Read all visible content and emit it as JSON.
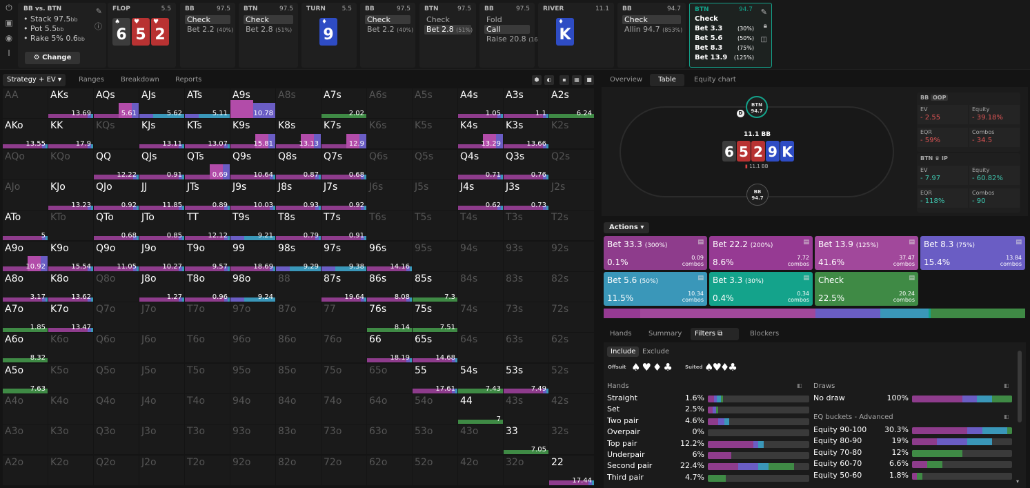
{
  "colors": {
    "purple": "#8e3c8c",
    "purple2": "#b24ca9",
    "violet": "#6a5dc4",
    "teal": "#3a97b9",
    "teal2": "#14a38b",
    "green": "#3f8a45",
    "red": "#b83232",
    "blue": "#2e4cc4",
    "gray": "#4a4a4a"
  },
  "sidebar": {
    "icons": [
      "power-icon",
      "save-icon",
      "gamepad-icon",
      "text-cursor-icon"
    ]
  },
  "spot": {
    "title": "BB vs. BTN",
    "stack": "Stack 97.5",
    "pot": "Pot 5.5",
    "rake": "Rake 5% 0.6",
    "unit": "bb",
    "change_label": "Change"
  },
  "streets": [
    {
      "key": "flop",
      "title": "FLOP",
      "value": "5.5",
      "cards": [
        {
          "rank": "6",
          "suit": "♠",
          "color": "gray"
        },
        {
          "rank": "5",
          "suit": "♥",
          "color": "red"
        },
        {
          "rank": "2",
          "suit": "♥",
          "color": "red"
        }
      ]
    },
    {
      "key": "bb1",
      "title": "BB",
      "value": "97.5",
      "actions": [
        {
          "label": "Check",
          "pct": "",
          "sel": true
        },
        {
          "label": "Bet 2.2",
          "pct": "(40%)",
          "sel": false
        }
      ]
    },
    {
      "key": "btn1",
      "title": "BTN",
      "value": "97.5",
      "actions": [
        {
          "label": "Check",
          "pct": "",
          "sel": true
        },
        {
          "label": "Bet 2.8",
          "pct": "(51%)",
          "sel": false
        }
      ]
    },
    {
      "key": "turn",
      "title": "TURN",
      "value": "5.5",
      "cards": [
        {
          "rank": "9",
          "suit": "♦",
          "color": "blue"
        }
      ]
    },
    {
      "key": "bb2",
      "title": "BB",
      "value": "97.5",
      "actions": [
        {
          "label": "Check",
          "pct": "",
          "sel": true
        },
        {
          "label": "Bet 2.2",
          "pct": "(40%)",
          "sel": false
        }
      ]
    },
    {
      "key": "btn2",
      "title": "BTN",
      "value": "97.5",
      "actions": [
        {
          "label": "Check",
          "pct": "",
          "sel": false
        },
        {
          "label": "Bet 2.8",
          "pct": "(51%)",
          "sel": true
        }
      ]
    },
    {
      "key": "bb3",
      "title": "BB",
      "value": "97.5",
      "actions": [
        {
          "label": "Fold",
          "pct": "",
          "sel": false
        },
        {
          "label": "Call",
          "pct": "",
          "sel": true
        },
        {
          "label": "Raise 20.8",
          "pct": "(162%)",
          "sel": false
        }
      ]
    },
    {
      "key": "river",
      "title": "RIVER",
      "value": "11.1",
      "cards": [
        {
          "rank": "K",
          "suit": "♦",
          "color": "blue"
        }
      ]
    },
    {
      "key": "bb4",
      "title": "BB",
      "value": "94.7",
      "actions": [
        {
          "label": "Check",
          "pct": "",
          "sel": true
        },
        {
          "label": "Allin 94.7",
          "pct": "(853%)",
          "sel": false
        }
      ]
    }
  ],
  "btn_node": {
    "title": "BTN",
    "value": "94.7",
    "rows": [
      {
        "label": "Check",
        "pct": ""
      },
      {
        "label": "Bet 3.3",
        "pct": "(30%)"
      },
      {
        "label": "Bet 5.6",
        "pct": "(50%)"
      },
      {
        "label": "Bet 8.3",
        "pct": "(75%)"
      },
      {
        "label": "Bet 13.9",
        "pct": "(125%)"
      }
    ]
  },
  "left_tabs": {
    "strategy": "Strategy + EV",
    "ranges": "Ranges",
    "breakdown": "Breakdown",
    "reports": "Reports"
  },
  "grid": [
    [
      "AA|0|",
      "AKs|1|13.69",
      "AQs|2|5.61",
      "AJs|3|5.62",
      "ATs|3|5.11",
      "A9s|4|10.78",
      "A8s|0|",
      "A7s|5|2.02",
      "A6s|0|",
      "A5s|0|",
      "A4s|1|1.05",
      "A3s|1|1.1",
      "A2s|5|6.24"
    ],
    [
      "AKo|1|13.55",
      "KK|1|17.9",
      "KQs|0|",
      "KJs|1|13.11",
      "KTs|1|13.07",
      "K9s|2|15.81",
      "K8s|2|13.13",
      "K7s|2|12.9",
      "K6s|0|",
      "K5s|0|",
      "K4s|2|13.29",
      "K3s|1|13.66",
      "K2s|0|"
    ],
    [
      "AQo|0|",
      "KQo|0|",
      "QQ|1|12.22",
      "QJs|1|0.91",
      "QTs|2|0.69",
      "Q9s|1|10.64",
      "Q8s|1|0.87",
      "Q7s|1|0.68",
      "Q6s|0|",
      "Q5s|0|",
      "Q4s|1|0.71",
      "Q3s|1|0.76",
      "Q2s|0|"
    ],
    [
      "AJo|0|",
      "KJo|1|13.23",
      "QJo|1|0.92",
      "JJ|1|11.85",
      "JTs|1|0.89",
      "J9s|1|10.03",
      "J8s|1|0.93",
      "J7s|1|0.92",
      "J6s|0|",
      "J5s|0|",
      "J4s|1|0.62",
      "J3s|1|0.73",
      "J2s|0|"
    ],
    [
      "ATo|1|5",
      "KTo|0|",
      "QTo|1|0.68",
      "JTo|1|0.85",
      "TT|1|12.12",
      "T9s|3|9.21",
      "T8s|1|0.79",
      "T7s|1|0.91",
      "T6s|0|",
      "T5s|0|",
      "T4s|0|",
      "T3s|0|",
      "T2s|0|"
    ],
    [
      "A9o|2|10.92",
      "K9o|1|15.54",
      "Q9o|1|11.05",
      "J9o|1|10.27",
      "T9o|1|9.57",
      "99|1|18.69",
      "98s|3|9.29",
      "97s|3|9.38",
      "96s|1|14.16",
      "95s|0|",
      "94s|0|",
      "93s|0|",
      "92s|0|"
    ],
    [
      "A8o|1|3.17",
      "K8o|1|13.62",
      "Q8o|0|",
      "J8o|1|1.27",
      "T8o|1|0.96",
      "98o|3|9.24",
      "88|0|",
      "87s|1|19.64",
      "86s|1|8.08",
      "85s|5|7.3",
      "84s|0|",
      "83s|0|",
      "82s|0|"
    ],
    [
      "A7o|5|1.85",
      "K7o|1|13.47",
      "Q7o|0|",
      "J7o|0|",
      "T7o|0|",
      "97o|0|",
      "87o|0|",
      "77|0|",
      "76s|5|8.14",
      "75s|5|7.51",
      "74s|0|",
      "73s|0|",
      "72s|0|"
    ],
    [
      "A6o|5|8.32",
      "K6o|0|",
      "Q6o|0|",
      "J6o|0|",
      "T6o|0|",
      "96o|0|",
      "86o|0|",
      "76o|0|",
      "66|1|18.19",
      "65s|1|14.68",
      "64s|0|",
      "63s|0|",
      "62s|0|"
    ],
    [
      "A5o|5|7.63",
      "K5o|0|",
      "Q5o|0|",
      "J5o|0|",
      "T5o|0|",
      "95o|0|",
      "85o|0|",
      "75o|0|",
      "65o|0|",
      "55|1|17.61",
      "54s|5|7.43",
      "53s|1|7.49",
      "52s|0|"
    ],
    [
      "A4o|0|",
      "K4o|0|",
      "Q4o|0|",
      "J4o|0|",
      "T4o|0|",
      "94o|0|",
      "84o|0|",
      "74o|0|",
      "64o|0|",
      "54o|0|",
      "44|5|7",
      "43s|0|",
      "42s|0|"
    ],
    [
      "A3o|0|",
      "K3o|0|",
      "Q3o|0|",
      "J3o|0|",
      "T3o|0|",
      "93o|0|",
      "83o|0|",
      "73o|0|",
      "63o|0|",
      "53o|0|",
      "43o|0|",
      "33|5|7.05",
      "32s|0|"
    ],
    [
      "A2o|0|",
      "K2o|0|",
      "Q2o|0|",
      "J2o|0|",
      "T2o|0|",
      "92o|0|",
      "82o|0|",
      "72o|0|",
      "62o|0|",
      "52o|0|",
      "42o|0|",
      "32o|0|",
      "22|1|17.44"
    ]
  ],
  "right_tabs": {
    "overview": "Overview",
    "table": "Table",
    "equity": "Equity chart"
  },
  "table": {
    "pot": "11.1 BB",
    "pot_small": "11.1 BB",
    "dealer": "D",
    "btn_seat": {
      "name": "BTN",
      "stack": "94.7"
    },
    "bb_seat": {
      "name": "BB",
      "stack": "94.7"
    },
    "board": [
      {
        "rank": "6",
        "color": "gray"
      },
      {
        "rank": "5",
        "color": "red"
      },
      {
        "rank": "2",
        "color": "red"
      },
      {
        "rank": "9",
        "color": "blue"
      },
      {
        "rank": "K",
        "color": "blue"
      }
    ]
  },
  "stats": {
    "bb": {
      "title": "BB",
      "pos": "OOP",
      "ev": "- 2.55",
      "equity": "- 39.18%",
      "eqr": "- 59%",
      "combos": "- 34.5"
    },
    "btn": {
      "title": "BTN",
      "pos": "IP",
      "ev": "- 7.97",
      "equity": "- 60.82%",
      "eqr": "- 118%",
      "combos": "- 90"
    },
    "labels": {
      "ev": "EV",
      "equity": "Equity",
      "eqr": "EQR",
      "combos": "Combos"
    }
  },
  "actions": {
    "header": "Actions",
    "items": [
      {
        "label": "Bet 33.3",
        "size": "(300%)",
        "pct": "0.1%",
        "combos": "0.09",
        "color": "#8e3c8c",
        "frac": 0.001
      },
      {
        "label": "Bet 22.2",
        "size": "(200%)",
        "pct": "8.6%",
        "combos": "7.72",
        "color": "#963a93",
        "frac": 0.086
      },
      {
        "label": "Bet 13.9",
        "size": "(125%)",
        "pct": "41.6%",
        "combos": "37.47",
        "color": "#a1489b",
        "frac": 0.416
      },
      {
        "label": "Bet 8.3",
        "size": "(75%)",
        "pct": "15.4%",
        "combos": "13.84",
        "color": "#6a5dc4",
        "frac": 0.154
      },
      {
        "label": "Bet 5.6",
        "size": "(50%)",
        "pct": "11.5%",
        "combos": "10.34",
        "color": "#3a97b9",
        "frac": 0.115
      },
      {
        "label": "Bet 3.3",
        "size": "(30%)",
        "pct": "0.4%",
        "combos": "0.34",
        "color": "#14a38b",
        "frac": 0.004
      },
      {
        "label": "Check",
        "size": "",
        "pct": "22.5%",
        "combos": "20.24",
        "color": "#3f8a45",
        "frac": 0.225
      }
    ],
    "combos_word": "combos"
  },
  "bottom_tabs": {
    "hands": "Hands",
    "summary": "Summary",
    "filters": "Filters",
    "blockers": "Blockers"
  },
  "filters": {
    "include": "Include",
    "exclude": "Exclude",
    "offsuit": "Offsuit",
    "suited": "Suited",
    "hands_title": "Hands",
    "draws_title": "Draws",
    "eq_title": "EQ buckets - Advanced",
    "hands": [
      {
        "name": "Straight",
        "pct": "1.6%",
        "parts": [
          0.06,
          0.03,
          0.04,
          0.02
        ]
      },
      {
        "name": "Set",
        "pct": "2.5%",
        "parts": [
          0.05,
          0.03,
          0.0,
          0.02
        ]
      },
      {
        "name": "Two pair",
        "pct": "4.6%",
        "parts": [
          0.1,
          0.06,
          0.05,
          0.0
        ]
      },
      {
        "name": "Overpair",
        "pct": "0%",
        "parts": [
          0,
          0,
          0,
          0
        ]
      },
      {
        "name": "Top pair",
        "pct": "12.2%",
        "parts": [
          0.45,
          0.05,
          0.05,
          0.0
        ]
      },
      {
        "name": "Underpair",
        "pct": "6%",
        "parts": [
          0.23,
          0.0,
          0.0,
          0.0
        ]
      },
      {
        "name": "Second pair",
        "pct": "22.4%",
        "parts": [
          0.3,
          0.2,
          0.1,
          0.25
        ]
      },
      {
        "name": "Third pair",
        "pct": "4.7%",
        "parts": [
          0.0,
          0.0,
          0.0,
          0.18
        ]
      }
    ],
    "draws": [
      {
        "name": "No draw",
        "pct": "100%",
        "parts": [
          0.5,
          0.15,
          0.15,
          0.2
        ]
      }
    ],
    "eq": [
      {
        "name": "Equity 90-100",
        "pct": "30.3%",
        "parts": [
          0.55,
          0.15,
          0.25,
          0.05
        ]
      },
      {
        "name": "Equity 80-90",
        "pct": "19%",
        "parts": [
          0.25,
          0.3,
          0.25,
          0.0
        ]
      },
      {
        "name": "Equity 70-80",
        "pct": "12%",
        "parts": [
          0.0,
          0.0,
          0.0,
          0.5
        ]
      },
      {
        "name": "Equity 60-70",
        "pct": "6.6%",
        "parts": [
          0.15,
          0.0,
          0.0,
          0.15
        ]
      },
      {
        "name": "Equity 50-60",
        "pct": "1.8%",
        "parts": [
          0.05,
          0.0,
          0.0,
          0.05
        ]
      }
    ]
  }
}
